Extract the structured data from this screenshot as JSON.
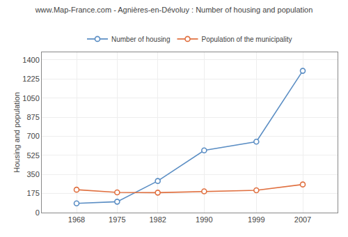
{
  "chart_data": {
    "type": "line",
    "title": "www.Map-France.com - Agnières-en-Dévoluy : Number of housing and population",
    "ylabel": "Housing and population",
    "x": [
      1968,
      1975,
      1982,
      1990,
      1999,
      2007
    ],
    "series": [
      {
        "name": "Number of housing",
        "color": "#5b8ec4",
        "marker": "circle",
        "values": [
          85,
          100,
          290,
          570,
          650,
          1300
        ]
      },
      {
        "name": "Population of the municipality",
        "color": "#e07040",
        "marker": "circle",
        "values": [
          210,
          185,
          183,
          195,
          205,
          258
        ]
      }
    ],
    "xlim": [
      1962,
      2013
    ],
    "xticks": [
      1968,
      1975,
      1982,
      1990,
      1999,
      2007
    ],
    "ylim": [
      0,
      1470
    ],
    "yticks": [
      0,
      175,
      350,
      525,
      700,
      875,
      1050,
      1225,
      1400
    ],
    "grid": true,
    "legend": "top"
  }
}
